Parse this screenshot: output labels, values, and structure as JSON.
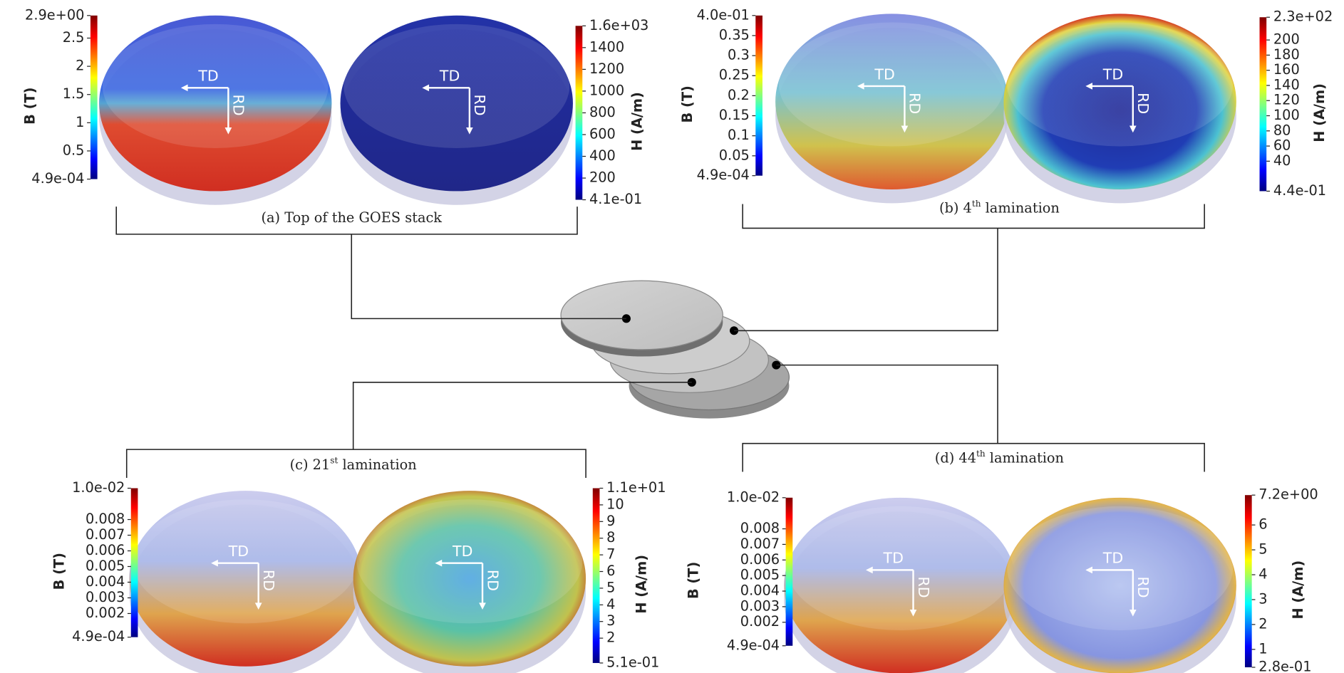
{
  "panels": [
    {
      "caption": {
        "text": "(a) Top of the GOES stack"
      },
      "views": [
        {
          "axis_label": "B (T)",
          "td": "TD",
          "rd": "RD",
          "ticks": [
            {
              "value": 0.00049,
              "label": "4.9e-04"
            },
            0.5,
            1,
            1.5,
            2,
            2.5,
            {
              "value": 2.9,
              "label": "2.9e+00"
            }
          ]
        },
        {
          "axis_label": "H (A/m)",
          "td": "TD",
          "rd": "RD",
          "ticks": [
            {
              "value": 0.41,
              "label": "4.1e-01"
            },
            200,
            400,
            600,
            800,
            1000,
            1200,
            1400,
            {
              "value": 1600,
              "label": "1.6e+03"
            }
          ]
        }
      ]
    },
    {
      "caption": {
        "text": "(b) 4",
        "sup": "th",
        "rest": " lamination"
      },
      "views": [
        {
          "axis_label": "B (T)",
          "td": "TD",
          "rd": "RD",
          "ticks": [
            {
              "value": 0.00049,
              "label": "4.9e-04"
            },
            0.05,
            0.1,
            0.15,
            0.2,
            0.25,
            0.3,
            0.35,
            {
              "value": 0.4,
              "label": "4.0e-01"
            }
          ]
        },
        {
          "axis_label": "H (A/m)",
          "td": "TD",
          "rd": "RD",
          "ticks": [
            {
              "value": 0.44,
              "label": "4.4e-01"
            },
            40,
            60,
            80,
            100,
            120,
            140,
            160,
            180,
            200,
            {
              "value": 230,
              "label": "2.3e+02"
            }
          ]
        }
      ]
    },
    {
      "caption": {
        "text": "(c) 21",
        "sup": "st",
        "rest": " lamination"
      },
      "views": [
        {
          "axis_label": "B (T)",
          "td": "TD",
          "rd": "RD",
          "ticks": [
            {
              "value": 0.00049,
              "label": "4.9e-04"
            },
            0.002,
            0.003,
            0.004,
            0.005,
            0.006,
            0.007,
            0.008,
            {
              "value": 0.01,
              "label": "1.0e-02"
            }
          ]
        },
        {
          "axis_label": "H (A/m)",
          "td": "TD",
          "rd": "RD",
          "ticks": [
            {
              "value": 0.51,
              "label": "5.1e-01"
            },
            2,
            3,
            4,
            5,
            6,
            7,
            8,
            9,
            10,
            {
              "value": 11,
              "label": "1.1e+01"
            }
          ]
        }
      ]
    },
    {
      "caption": {
        "text": "(d) 44",
        "sup": "th",
        "rest": " lamination"
      },
      "views": [
        {
          "axis_label": "B (T)",
          "td": "TD",
          "rd": "RD",
          "ticks": [
            {
              "value": 0.00049,
              "label": "4.9e-04"
            },
            0.002,
            0.003,
            0.004,
            0.005,
            0.006,
            0.007,
            0.008,
            {
              "value": 0.01,
              "label": "1.0e-02"
            }
          ]
        },
        {
          "axis_label": "H (A/m)",
          "td": "TD",
          "rd": "RD",
          "ticks": [
            {
              "value": 0.28,
              "label": "2.8e-01"
            },
            1,
            2,
            3,
            4,
            5,
            6,
            {
              "value": 7.2,
              "label": "7.2e+00"
            }
          ]
        }
      ]
    }
  ]
}
